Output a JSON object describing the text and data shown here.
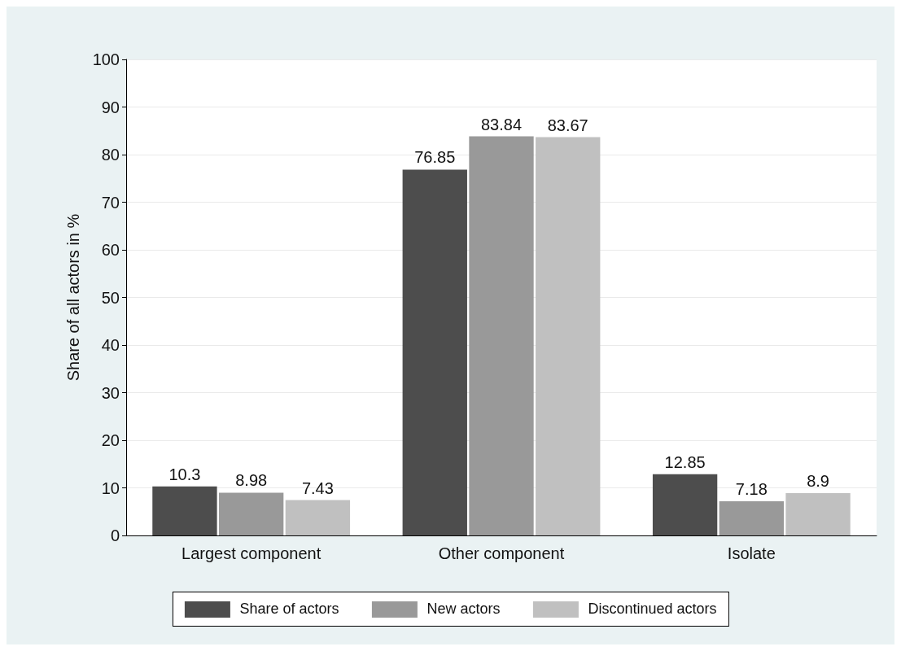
{
  "chart_data": {
    "type": "bar",
    "ylabel": "Share of all actors in %",
    "categories": [
      "Largest component",
      "Other component",
      "Isolate"
    ],
    "series": [
      {
        "name": "Share of actors",
        "color": "#4d4d4d",
        "values": [
          10.3,
          76.85,
          12.85
        ]
      },
      {
        "name": "New actors",
        "color": "#999999",
        "values": [
          8.98,
          83.84,
          7.18
        ]
      },
      {
        "name": "Discontinued actors",
        "color": "#c0c0c0",
        "values": [
          7.43,
          83.67,
          8.9
        ]
      }
    ],
    "ylim": [
      0,
      100
    ],
    "yticks": [
      0,
      10,
      20,
      30,
      40,
      50,
      60,
      70,
      80,
      90,
      100
    ],
    "grid": "y",
    "legend": "bottom",
    "data_labels": true
  }
}
